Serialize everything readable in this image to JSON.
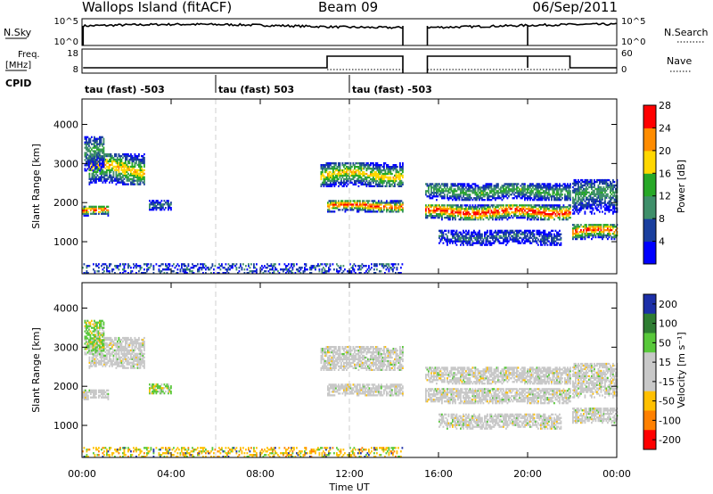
{
  "header": {
    "station": "Wallops Island (fitACF)",
    "beam": "Beam 09",
    "date": "06/Sep/2011"
  },
  "panels": {
    "nsky": {
      "label": "N.Sky",
      "ticks_left": [
        "10^5",
        "10^0"
      ],
      "ticks_right": [
        "10^5",
        "10^0"
      ],
      "right_label": "N.Search"
    },
    "freq": {
      "label_line1": "Freq.",
      "label_line2": "[MHz]",
      "ticks_left": [
        "18",
        "8"
      ],
      "ticks_right": [
        "60",
        "0"
      ],
      "right_label": "Nave"
    },
    "cpid": {
      "label": "CPID",
      "segments": [
        {
          "label": "tau (fast) -503",
          "start": 0
        },
        {
          "label": "tau (fast) 503",
          "start": 6
        },
        {
          "label": "tau (fast) -503",
          "start": 12
        }
      ]
    }
  },
  "chart_data": {
    "type": "heatmap",
    "x": {
      "label": "Time UT",
      "range_hours": [
        0,
        24
      ],
      "ticks": [
        0,
        4,
        8,
        12,
        16,
        20,
        24
      ],
      "tick_labels": [
        "00:00",
        "04:00",
        "08:00",
        "12:00",
        "16:00",
        "20:00",
        "00:00"
      ],
      "data_gap_hours": [
        14.4,
        15.4
      ]
    },
    "y": {
      "label": "Slant Range [km]",
      "range_km": [
        180,
        4650
      ],
      "ticks": [
        1000,
        2000,
        3000,
        4000
      ],
      "tick_labels": [
        "1000",
        "2000",
        "3000",
        "4000"
      ]
    },
    "power": {
      "colorbar_label": "Power [dB]",
      "ticks": [
        4,
        8,
        12,
        16,
        20,
        24,
        28
      ],
      "tick_labels": [
        "4",
        "8",
        "12",
        "16",
        "20",
        "24",
        "28"
      ],
      "colors": [
        "#0000ff",
        "#1a3f9e",
        "#3f8f6a",
        "#27a827",
        "#ffd700",
        "#ff8c00",
        "#ff0000"
      ]
    },
    "velocity": {
      "colorbar_label": "Velocity [m s⁻¹]",
      "ticks": [
        200,
        100,
        50,
        15,
        -15,
        -50,
        -100,
        -200
      ],
      "tick_labels": [
        "200",
        "100",
        "50",
        "15",
        "-15",
        "-50",
        "-100",
        "-200"
      ],
      "colors": [
        "#1c2fa8",
        "#2e7d32",
        "#58c83a",
        "#c8c8c8",
        "#c8c8c8",
        "#ffc000",
        "#ff8000",
        "#ff0000"
      ]
    },
    "features": [
      {
        "name": "range-band",
        "t0": 0.0,
        "t1": 1.2,
        "r0": 1650,
        "r1": 1900,
        "pmax": 28,
        "vclass": "low"
      },
      {
        "name": "range-band",
        "t0": 0.3,
        "t1": 2.8,
        "r0": 2450,
        "r1": 3250,
        "pmax": 22,
        "vclass": "low"
      },
      {
        "name": "range-band",
        "t0": 0.1,
        "t1": 1.0,
        "r0": 2800,
        "r1": 3700,
        "pmax": 14,
        "vclass": "pos"
      },
      {
        "name": "range-band",
        "t0": 3.0,
        "t1": 4.0,
        "r0": 1800,
        "r1": 2050,
        "pmax": 12,
        "vclass": "pos"
      },
      {
        "name": "range-band",
        "t0": 10.7,
        "t1": 14.4,
        "r0": 2400,
        "r1": 3000,
        "pmax": 22,
        "vclass": "low"
      },
      {
        "name": "range-band",
        "t0": 11.0,
        "t1": 14.4,
        "r0": 1750,
        "r1": 2050,
        "pmax": 28,
        "vclass": "low"
      },
      {
        "name": "range-band",
        "t0": 15.4,
        "t1": 21.9,
        "r0": 1550,
        "r1": 1950,
        "pmax": 30,
        "vclass": "low"
      },
      {
        "name": "range-band",
        "t0": 15.4,
        "t1": 21.9,
        "r0": 2050,
        "r1": 2500,
        "pmax": 16,
        "vclass": "low"
      },
      {
        "name": "range-band",
        "t0": 16.0,
        "t1": 21.5,
        "r0": 900,
        "r1": 1300,
        "pmax": 10,
        "vclass": "low"
      },
      {
        "name": "range-band",
        "t0": 22.0,
        "t1": 24.0,
        "r0": 1050,
        "r1": 1450,
        "pmax": 28,
        "vclass": "low"
      },
      {
        "name": "range-band",
        "t0": 22.0,
        "t1": 24.0,
        "r0": 1700,
        "r1": 2600,
        "pmax": 14,
        "vclass": "low"
      },
      {
        "name": "ground-scatter",
        "t0": 0.0,
        "t1": 15.0,
        "r0": 180,
        "r1": 420,
        "pmax": 10,
        "vclass": "neg"
      }
    ]
  }
}
